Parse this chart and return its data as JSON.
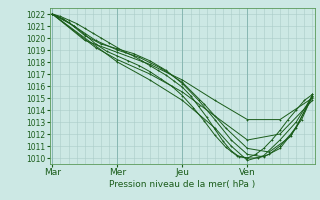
{
  "bg_color": "#cce8e4",
  "grid_color": "#aaccc8",
  "line_color": "#1a5c1a",
  "marker_color": "#1a5c1a",
  "ylim": [
    1009.5,
    1022.5
  ],
  "xlim": [
    -1,
    97
  ],
  "yticks": [
    1010,
    1011,
    1012,
    1013,
    1014,
    1015,
    1016,
    1017,
    1018,
    1019,
    1020,
    1021,
    1022
  ],
  "xtick_positions": [
    0,
    24,
    48,
    72
  ],
  "xtick_labels": [
    "Mar",
    "Mer",
    "Jeu",
    "Ven"
  ],
  "xlabel": "Pression niveau de la mer( hPa )",
  "lines": [
    [
      0,
      1022,
      3,
      1021.8,
      6,
      1021.5,
      9,
      1021.2,
      12,
      1020.8,
      15,
      1020.4,
      18,
      1020.0,
      21,
      1019.6,
      24,
      1019.2,
      27,
      1018.8,
      30,
      1018.5,
      33,
      1018.1,
      36,
      1017.7,
      39,
      1017.3,
      42,
      1016.9,
      45,
      1016.4,
      48,
      1015.9,
      51,
      1015.2,
      54,
      1014.3,
      57,
      1013.4,
      60,
      1012.4,
      63,
      1011.4,
      66,
      1010.6,
      69,
      1010.1,
      72,
      1010.0,
      75,
      1010.3,
      78,
      1010.8,
      81,
      1011.5,
      84,
      1012.3,
      87,
      1013.2,
      90,
      1014.0,
      93,
      1014.8,
      96,
      1015.3
    ],
    [
      0,
      1022,
      4,
      1021.6,
      8,
      1021.0,
      12,
      1020.3,
      16,
      1019.5,
      20,
      1018.9,
      24,
      1018.5,
      28,
      1018.1,
      32,
      1017.7,
      36,
      1017.2,
      40,
      1016.6,
      44,
      1016.0,
      48,
      1015.2,
      52,
      1014.2,
      56,
      1013.1,
      60,
      1011.9,
      64,
      1010.9,
      68,
      1010.2,
      72,
      1010.0,
      76,
      1010.0,
      80,
      1010.3,
      84,
      1011.0,
      88,
      1012.0,
      92,
      1013.2,
      96,
      1015.2
    ],
    [
      0,
      1022,
      6,
      1021.3,
      12,
      1020.2,
      18,
      1019.5,
      24,
      1019.1,
      30,
      1018.7,
      36,
      1018.1,
      42,
      1017.3,
      48,
      1016.2,
      54,
      1014.8,
      60,
      1013.2,
      66,
      1011.5,
      72,
      1010.3,
      78,
      1010.1,
      84,
      1010.8,
      90,
      1012.5,
      96,
      1015.3
    ],
    [
      0,
      1022,
      8,
      1021.0,
      16,
      1019.8,
      24,
      1019.0,
      32,
      1018.4,
      40,
      1017.5,
      48,
      1016.3,
      56,
      1014.5,
      64,
      1012.5,
      72,
      1010.8,
      80,
      1010.5,
      88,
      1011.8,
      96,
      1015.1
    ],
    [
      0,
      1022,
      12,
      1019.8,
      24,
      1018.8,
      36,
      1017.8,
      48,
      1016.5,
      60,
      1014.8,
      72,
      1013.2,
      84,
      1013.2,
      96,
      1015.0
    ],
    [
      0,
      1022,
      16,
      1019.2,
      24,
      1018.2,
      36,
      1017.0,
      48,
      1015.5,
      60,
      1013.5,
      72,
      1011.5,
      84,
      1012.0,
      96,
      1014.8
    ],
    [
      0,
      1022,
      24,
      1018.0,
      36,
      1016.5,
      48,
      1014.8,
      60,
      1012.5,
      66,
      1011.0,
      72,
      1009.8,
      78,
      1010.2,
      84,
      1011.5,
      90,
      1013.0,
      96,
      1015.2
    ]
  ]
}
